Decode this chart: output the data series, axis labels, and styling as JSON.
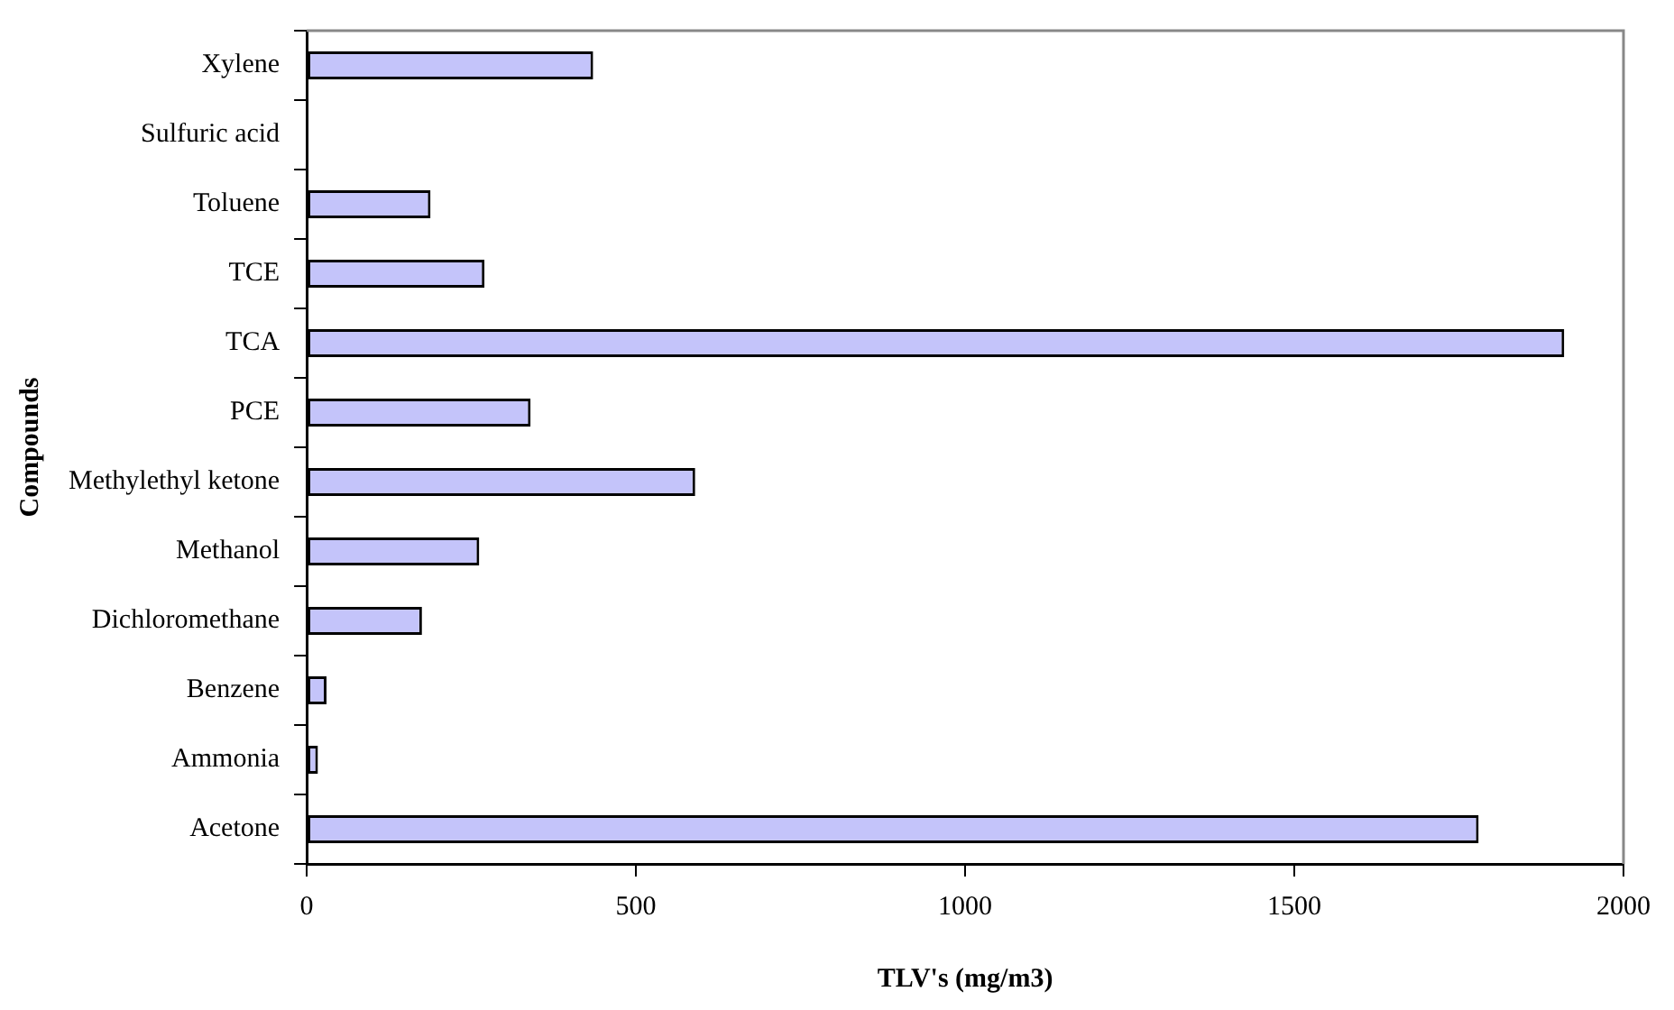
{
  "chart_data": {
    "type": "bar",
    "orientation": "horizontal",
    "xlabel": "TLV's (mg/m3)",
    "ylabel": "Compounds",
    "categories": [
      "Xylene",
      "Sulfuric acid",
      "Toluene",
      "TCE",
      "TCA",
      "PCE",
      "Methylethyl ketone",
      "Methanol",
      "Dichloromethane",
      "Benzene",
      "Ammonia",
      "Acetone"
    ],
    "values": [
      435,
      0,
      188,
      270,
      1910,
      340,
      590,
      262,
      175,
      30,
      17,
      1780
    ],
    "color": "#c4c4fa",
    "xlim": [
      0,
      2000
    ],
    "xticks": [
      0,
      500,
      1000,
      1500,
      2000
    ],
    "grid": false,
    "legend": false
  }
}
